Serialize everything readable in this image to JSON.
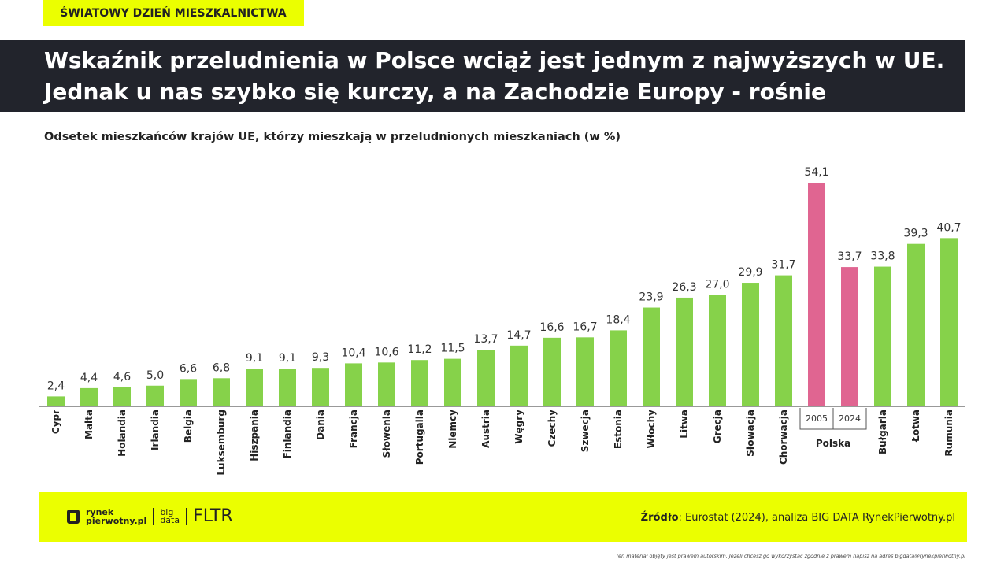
{
  "tag": "ŚWIATOWY DZIEŃ MIESZKALNICTWA",
  "title_line1": "Wskaźnik przeludnienia w Polsce wciąż jest jednym z najwyższych w UE.",
  "title_line2": "Jednak u nas szybko się kurczy, a na Zachodzie Europy - rośnie",
  "chart_data": {
    "type": "bar",
    "title": "Odsetek mieszkańców krajów UE, którzy mieszkają w przeludnionych mieszkaniach (w %)",
    "categories": [
      "Cypr",
      "Malta",
      "Holandia",
      "Irlandia",
      "Belgia",
      "Luksemburg",
      "Hiszpania",
      "Finlandia",
      "Dania",
      "Francja",
      "Słowenia",
      "Portugalia",
      "Niemcy",
      "Austria",
      "Węgry",
      "Czechy",
      "Szwecja",
      "Estonia",
      "Włochy",
      "Litwa",
      "Grecja",
      "Słowacja",
      "Chorwacja",
      "2005",
      "2024",
      "Bułgaria",
      "Łotwa",
      "Rumunia"
    ],
    "values": [
      2.4,
      4.4,
      4.6,
      5.0,
      6.6,
      6.8,
      9.1,
      9.1,
      9.3,
      10.4,
      10.6,
      11.2,
      11.5,
      13.7,
      14.7,
      16.6,
      16.7,
      18.4,
      23.9,
      26.3,
      27.0,
      29.9,
      31.7,
      54.1,
      33.7,
      33.8,
      39.3,
      40.7
    ],
    "labels": [
      "2,4",
      "4,4",
      "4,6",
      "5,0",
      "6,6",
      "6,8",
      "9,1",
      "9,1",
      "9,3",
      "10,4",
      "10,6",
      "11,2",
      "11,5",
      "13,7",
      "14,7",
      "16,6",
      "16,7",
      "18,4",
      "23,9",
      "26,3",
      "27,0",
      "29,9",
      "31,7",
      "54,1",
      "33,7",
      "33,8",
      "39,3",
      "40,7"
    ],
    "group_label": "Polska",
    "highlight_indices": [
      23,
      24
    ],
    "colors": {
      "default": "#86d24a",
      "highlight": "#e06591"
    },
    "ylim": [
      0,
      55
    ]
  },
  "footer": {
    "logo1a": "rynek",
    "logo1b": "pierwotny.pl",
    "logo2a": "big",
    "logo2b": "data",
    "logo3": "FLTR",
    "source_bold": "Źródło",
    "source_text": ": Eurostat (2024), analiza BIG DATA RynekPierwotny.pl"
  },
  "copyright": "Ten materiał objęty jest prawem autorskim. Jeżeli chcesz go wykorzystać zgodnie z prawem napisz na adres bigdata@rynekpierwotny.pl"
}
